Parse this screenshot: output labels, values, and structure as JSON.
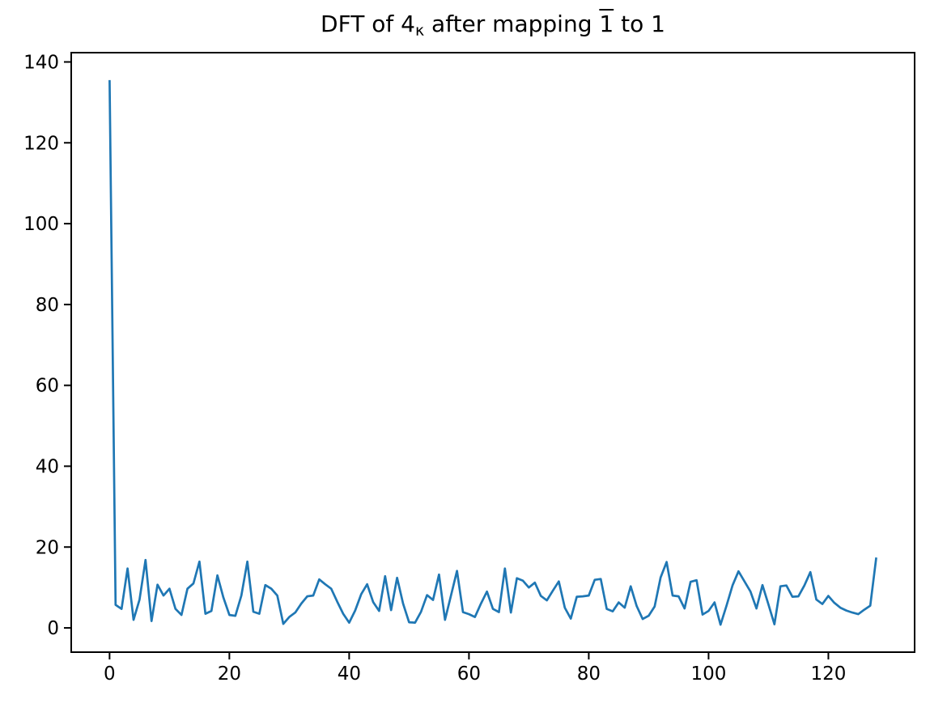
{
  "figure": {
    "background": "#ffffff",
    "title_parts": {
      "prefix": "DFT of 4",
      "subscript": "κ",
      "middle": " after mapping ",
      "overlined": "1",
      "suffix": " to 1"
    },
    "line_color": "#1f77b4",
    "axis_color": "#000000"
  },
  "chart_data": {
    "type": "line",
    "title": "DFT of 4_κ after mapping 1̄ to 1",
    "xlabel": "",
    "ylabel": "",
    "grid": false,
    "legend": null,
    "line_color": "#1f77b4",
    "xlim": [
      -6.4,
      134.4
    ],
    "ylim": [
      -6,
      142.3
    ],
    "x_ticks": [
      0,
      20,
      40,
      60,
      80,
      100,
      120
    ],
    "y_ticks": [
      0,
      20,
      40,
      60,
      80,
      100,
      120,
      140
    ],
    "x": [
      0,
      1,
      2,
      3,
      4,
      5,
      6,
      7,
      8,
      9,
      10,
      11,
      12,
      13,
      14,
      15,
      16,
      17,
      18,
      19,
      20,
      21,
      22,
      23,
      24,
      25,
      26,
      27,
      28,
      29,
      30,
      31,
      32,
      33,
      34,
      35,
      36,
      37,
      38,
      39,
      40,
      41,
      42,
      43,
      44,
      45,
      46,
      47,
      48,
      49,
      50,
      51,
      52,
      53,
      54,
      55,
      56,
      57,
      58,
      59,
      60,
      61,
      62,
      63,
      64,
      65,
      66,
      67,
      68,
      69,
      70,
      71,
      72,
      73,
      74,
      75,
      76,
      77,
      78,
      79,
      80,
      81,
      82,
      83,
      84,
      85,
      86,
      87,
      88,
      89,
      90,
      91,
      92,
      93,
      94,
      95,
      96,
      97,
      98,
      99,
      100,
      101,
      102,
      103,
      104,
      105,
      106,
      107,
      108,
      109,
      110,
      111,
      112,
      113,
      114,
      115,
      116,
      117,
      118,
      119,
      120,
      121,
      122,
      123,
      124,
      125,
      126,
      127,
      128
    ],
    "values": [
      135.5,
      5.7,
      4.7,
      14.7,
      2.0,
      7.0,
      16.8,
      1.7,
      10.7,
      8.0,
      9.7,
      4.7,
      3.2,
      9.7,
      11.0,
      16.4,
      3.5,
      4.2,
      13.0,
      7.5,
      3.2,
      3.0,
      8.0,
      16.4,
      4.0,
      3.5,
      10.6,
      9.7,
      8.0,
      1.0,
      2.7,
      3.8,
      6.0,
      7.8,
      8.0,
      12.0,
      10.8,
      9.7,
      6.5,
      3.5,
      1.3,
      4.3,
      8.3,
      10.8,
      6.4,
      4.2,
      12.8,
      4.4,
      12.4,
      6.0,
      1.4,
      1.3,
      4.0,
      8.1,
      6.9,
      13.2,
      2.0,
      8.0,
      14.1,
      3.9,
      3.4,
      2.7,
      6.0,
      9.0,
      4.7,
      3.9,
      14.7,
      3.8,
      12.3,
      11.7,
      10.0,
      11.2,
      7.9,
      6.8,
      9.2,
      11.5,
      5.0,
      2.3,
      7.7,
      7.8,
      8.0,
      11.9,
      12.1,
      4.7,
      4.1,
      6.3,
      5.0,
      10.3,
      5.4,
      2.2,
      3.0,
      5.3,
      12.5,
      16.3,
      8.0,
      7.8,
      4.8,
      11.4,
      11.8,
      3.3,
      4.2,
      6.3,
      0.8,
      5.5,
      10.5,
      14.0,
      11.5,
      9.0,
      4.8,
      10.6,
      5.8,
      0.9,
      10.3,
      10.5,
      7.7,
      7.8,
      10.5,
      13.8,
      7.0,
      5.9,
      7.9,
      6.2,
      5.0,
      4.3,
      3.8,
      3.4,
      4.5,
      5.5,
      17.4
    ]
  }
}
